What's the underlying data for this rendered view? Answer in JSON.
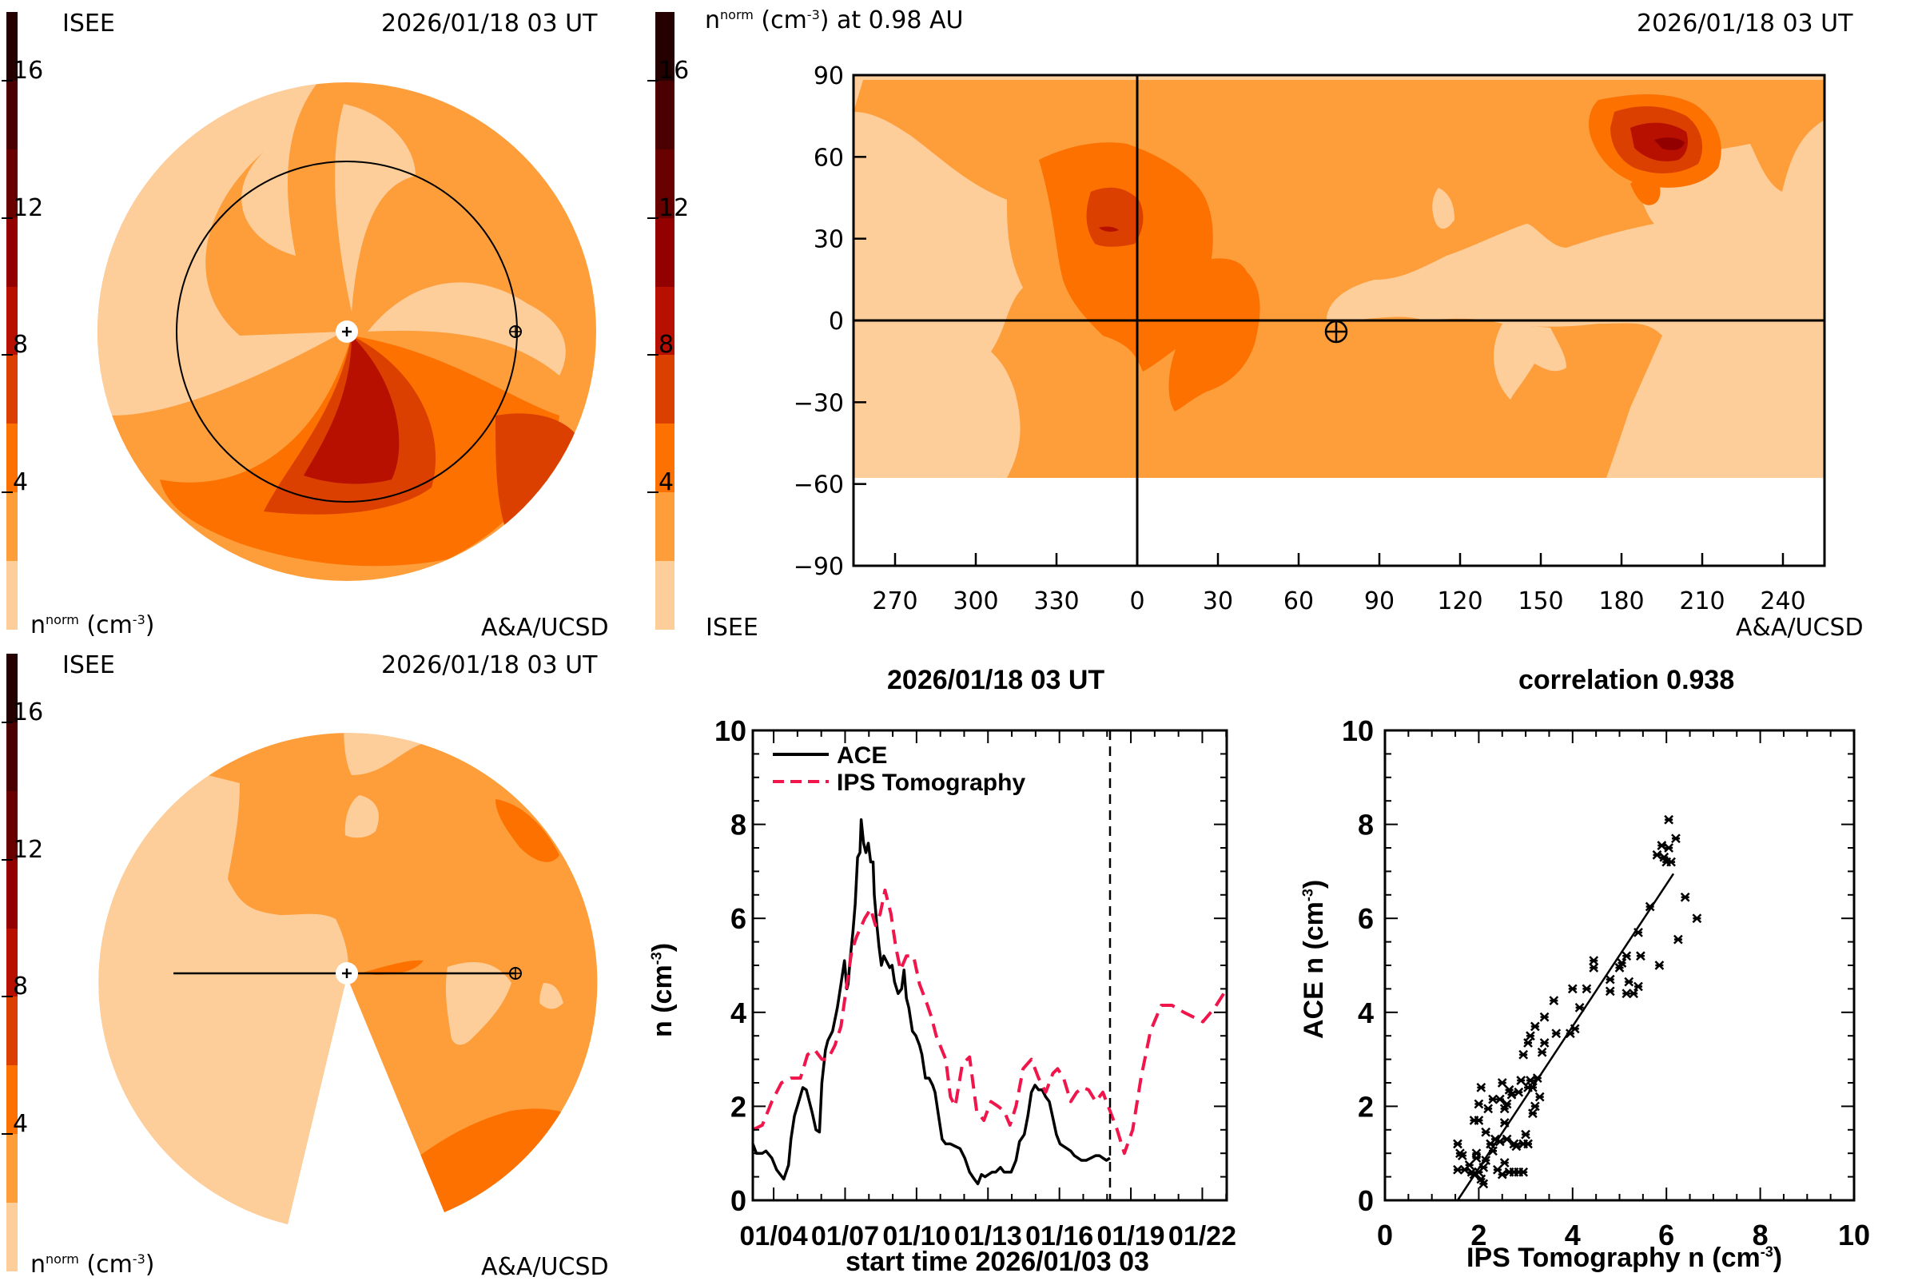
{
  "colormap": {
    "levels": [
      0,
      2,
      4,
      6,
      8,
      10,
      12,
      14,
      16,
      18
    ],
    "colors": [
      "#fdcd9a",
      "#fd9e3b",
      "#fd7100",
      "#dc4000",
      "#b70f00",
      "#920000",
      "#690000",
      "#4a0000",
      "#240000"
    ],
    "tick_labels": [
      "16",
      "12",
      "8",
      "4"
    ],
    "tick_values": [
      16,
      12,
      8,
      4
    ]
  },
  "panel_top_left": {
    "source": "ISEE",
    "timestamp": "2026/01/18 03 UT",
    "unit_label": "n",
    "unit_sup": "norm",
    "unit_rest": " (cm",
    "unit_exp": "-3",
    "unit_close": ")",
    "credit": "A&A/UCSD"
  },
  "panel_top_right": {
    "title_var": "n",
    "title_sup": "norm",
    "title_unit": " (cm",
    "title_exp": "-3",
    "title_rest": ") at 0.98 AU",
    "timestamp": "2026/01/18 03 UT",
    "source": "ISEE",
    "credit": "A&A/UCSD",
    "y_ticks": [
      "90",
      "60",
      "30",
      "0",
      "−30",
      "−60",
      "−90"
    ],
    "x_ticks": [
      "270",
      "300",
      "330",
      "0",
      "30",
      "60",
      "90",
      "120",
      "150",
      "180",
      "210",
      "240"
    ],
    "earth_marker": {
      "lon": 73,
      "lat": -5
    }
  },
  "panel_bottom_left": {
    "source": "ISEE",
    "timestamp": "2026/01/18 03 UT",
    "unit_label": "n",
    "unit_sup": "norm",
    "unit_rest": " (cm",
    "unit_exp": "-3",
    "unit_close": ")",
    "credit": "A&A/UCSD"
  },
  "chart_data": [
    {
      "type": "line",
      "title": "2026/01/18 03 UT",
      "xlabel": "start time 2026/01/03 03",
      "ylabel": "n (cm",
      "ylabel_exp": "-3",
      "ylim": [
        0,
        10
      ],
      "xlim_days": [
        0.0,
        19.9
      ],
      "y_ticks": [
        "0",
        "2",
        "4",
        "6",
        "8",
        "10"
      ],
      "x_tick_labels": [
        "01/04",
        "01/07",
        "01/10",
        "01/13",
        "01/16",
        "01/19",
        "01/22"
      ],
      "x_tick_days": [
        0.875,
        3.875,
        6.875,
        9.875,
        12.875,
        15.875,
        18.875
      ],
      "now_line_day": 15.0,
      "legend": [
        {
          "name": "ACE",
          "style": "solid",
          "color": "#000000"
        },
        {
          "name": "IPS Tomography",
          "style": "dashed",
          "color": "#f0154a"
        }
      ],
      "legend_position": "top-left",
      "series": [
        {
          "name": "ACE",
          "x": [
            0.0,
            0.15,
            0.4,
            0.55,
            0.8,
            1.0,
            1.15,
            1.3,
            1.4,
            1.5,
            1.6,
            1.75,
            1.9,
            2.1,
            2.25,
            2.35,
            2.5,
            2.65,
            2.8,
            2.9,
            3.05,
            3.15,
            3.35,
            3.55,
            3.7,
            3.85,
            3.95,
            4.0,
            4.1,
            4.2,
            4.3,
            4.4,
            4.5,
            4.55,
            4.65,
            4.75,
            4.85,
            4.95,
            5.05,
            5.1,
            5.2,
            5.3,
            5.4,
            5.5,
            5.6,
            5.75,
            5.85,
            5.95,
            6.1,
            6.25,
            6.35,
            6.45,
            6.55,
            6.7,
            6.85,
            7.0,
            7.1,
            7.25,
            7.4,
            7.55,
            7.65,
            7.8,
            7.95,
            8.1,
            8.3,
            8.5,
            8.7,
            8.9,
            9.1,
            9.3,
            9.45,
            9.6,
            9.75,
            9.9,
            10.05,
            10.2,
            10.4,
            10.55,
            10.7,
            10.85,
            11.05,
            11.2,
            11.4,
            11.55,
            11.7,
            11.85,
            12.0,
            12.15,
            12.3,
            12.45,
            12.6,
            12.75,
            12.9,
            13.05,
            13.2,
            13.35,
            13.5,
            13.65,
            13.8,
            14.0,
            14.2,
            14.4,
            14.55,
            14.7,
            14.85,
            15.0
          ],
          "y": [
            1.2,
            1.0,
            1.0,
            1.05,
            0.9,
            0.65,
            0.55,
            0.45,
            0.6,
            0.75,
            1.3,
            1.8,
            2.05,
            2.4,
            2.35,
            2.15,
            1.85,
            1.5,
            1.45,
            2.5,
            3.2,
            3.4,
            3.6,
            4.1,
            4.6,
            5.1,
            4.5,
            4.6,
            5.2,
            5.7,
            6.3,
            7.3,
            7.4,
            8.1,
            7.6,
            7.4,
            7.6,
            7.2,
            7.2,
            6.5,
            5.9,
            5.4,
            5.0,
            5.2,
            5.1,
            4.95,
            5.0,
            4.65,
            4.4,
            4.5,
            4.9,
            4.3,
            4.1,
            3.6,
            3.5,
            3.3,
            3.1,
            2.6,
            2.6,
            2.45,
            2.3,
            1.8,
            1.3,
            1.2,
            1.2,
            1.15,
            1.1,
            0.9,
            0.6,
            0.45,
            0.35,
            0.55,
            0.5,
            0.55,
            0.6,
            0.6,
            0.7,
            0.6,
            0.6,
            0.6,
            0.85,
            1.25,
            1.4,
            1.8,
            2.3,
            2.45,
            2.35,
            2.35,
            2.2,
            2.1,
            1.75,
            1.4,
            1.2,
            1.15,
            1.1,
            1.05,
            0.95,
            0.9,
            0.85,
            0.85,
            0.9,
            0.95,
            0.95,
            0.9,
            0.85,
            0.9
          ]
        },
        {
          "name": "IPS Tomography",
          "x": [
            0.0,
            0.4,
            0.8,
            1.2,
            1.6,
            2.0,
            2.3,
            2.6,
            2.9,
            3.15,
            3.45,
            3.7,
            3.95,
            4.15,
            4.35,
            4.7,
            4.95,
            5.15,
            5.35,
            5.55,
            5.8,
            6.0,
            6.2,
            6.45,
            6.75,
            7.0,
            7.3,
            7.5,
            7.7,
            8.1,
            8.3,
            8.5,
            8.8,
            9.1,
            9.4,
            9.7,
            10.0,
            10.3,
            10.55,
            10.8,
            11.05,
            11.35,
            11.7,
            12.0,
            12.3,
            12.6,
            12.8,
            13.05,
            13.35,
            13.6,
            13.85,
            14.1,
            14.4,
            14.7,
            15.0,
            15.3,
            15.6,
            15.95,
            16.3,
            16.7,
            17.15,
            17.6,
            18.1,
            18.5,
            18.9,
            19.4,
            19.9
          ],
          "y": [
            1.5,
            1.6,
            2.1,
            2.5,
            2.6,
            2.6,
            3.1,
            3.2,
            3.0,
            3.0,
            3.3,
            3.7,
            4.6,
            5.3,
            5.6,
            6.0,
            6.2,
            5.85,
            6.1,
            6.6,
            6.1,
            5.4,
            4.9,
            5.2,
            5.2,
            4.6,
            4.2,
            3.9,
            3.5,
            3.0,
            2.2,
            2.0,
            2.9,
            3.05,
            1.9,
            1.7,
            2.1,
            2.0,
            1.9,
            1.6,
            2.0,
            2.8,
            3.0,
            2.6,
            2.3,
            2.7,
            2.8,
            2.6,
            2.1,
            2.3,
            2.4,
            2.35,
            2.1,
            2.3,
            1.9,
            1.5,
            1.0,
            1.5,
            2.6,
            3.6,
            4.15,
            4.15,
            4.0,
            3.9,
            3.8,
            4.1,
            4.5
          ]
        }
      ]
    },
    {
      "type": "scatter",
      "title": "correlation 0.938",
      "xlabel": "IPS Tomography n (cm",
      "xlabel_exp": "-3",
      "ylabel": "ACE n (cm",
      "ylabel_exp": "-3",
      "xlim": [
        0,
        10
      ],
      "ylim": [
        0,
        10
      ],
      "x_ticks": [
        "0",
        "2",
        "4",
        "6",
        "8",
        "10"
      ],
      "y_ticks": [
        "0",
        "2",
        "4",
        "6",
        "8",
        "10"
      ],
      "marker": "x",
      "fit_line": {
        "x": [
          1.55,
          6.15
        ],
        "y": [
          0.0,
          6.95
        ]
      },
      "points": [
        [
          1.55,
          1.2
        ],
        [
          1.6,
          1.0
        ],
        [
          1.65,
          0.95
        ],
        [
          1.55,
          0.65
        ],
        [
          1.7,
          0.65
        ],
        [
          1.8,
          0.75
        ],
        [
          1.85,
          0.6
        ],
        [
          1.9,
          0.55
        ],
        [
          1.95,
          0.9
        ],
        [
          1.95,
          1.0
        ],
        [
          2.0,
          0.6
        ],
        [
          2.05,
          0.45
        ],
        [
          2.1,
          0.35
        ],
        [
          2.1,
          0.7
        ],
        [
          2.15,
          0.85
        ],
        [
          1.9,
          1.7
        ],
        [
          2.0,
          1.7
        ],
        [
          2.0,
          2.05
        ],
        [
          2.05,
          2.4
        ],
        [
          2.15,
          1.45
        ],
        [
          2.2,
          1.95
        ],
        [
          2.25,
          1.2
        ],
        [
          2.3,
          1.05
        ],
        [
          2.3,
          2.15
        ],
        [
          2.35,
          1.3
        ],
        [
          2.45,
          1.25
        ],
        [
          2.45,
          2.15
        ],
        [
          2.5,
          2.5
        ],
        [
          2.55,
          1.95
        ],
        [
          2.55,
          1.65
        ],
        [
          2.6,
          1.3
        ],
        [
          2.6,
          2.05
        ],
        [
          2.65,
          2.35
        ],
        [
          2.7,
          2.25
        ],
        [
          2.75,
          1.2
        ],
        [
          2.8,
          1.15
        ],
        [
          2.85,
          2.3
        ],
        [
          2.9,
          2.55
        ],
        [
          2.95,
          1.2
        ],
        [
          3.05,
          1.2
        ],
        [
          3.05,
          2.4
        ],
        [
          3.1,
          2.55
        ],
        [
          3.15,
          2.4
        ],
        [
          3.2,
          2.0
        ],
        [
          3.25,
          2.6
        ],
        [
          3.3,
          2.2
        ],
        [
          2.5,
          0.55
        ],
        [
          2.55,
          0.8
        ],
        [
          2.65,
          0.6
        ],
        [
          2.75,
          0.6
        ],
        [
          2.85,
          0.6
        ],
        [
          2.95,
          0.6
        ],
        [
          2.4,
          0.65
        ],
        [
          3.0,
          1.4
        ],
        [
          3.15,
          1.85
        ],
        [
          2.95,
          3.1
        ],
        [
          3.05,
          3.35
        ],
        [
          3.1,
          3.5
        ],
        [
          3.2,
          3.7
        ],
        [
          3.35,
          3.15
        ],
        [
          3.4,
          3.9
        ],
        [
          3.4,
          3.35
        ],
        [
          3.6,
          4.25
        ],
        [
          3.65,
          3.55
        ],
        [
          3.95,
          3.55
        ],
        [
          4.0,
          4.5
        ],
        [
          4.05,
          3.65
        ],
        [
          4.15,
          4.1
        ],
        [
          4.3,
          4.5
        ],
        [
          4.45,
          4.95
        ],
        [
          4.45,
          5.1
        ],
        [
          4.8,
          4.45
        ],
        [
          4.8,
          4.7
        ],
        [
          5.0,
          4.95
        ],
        [
          5.05,
          5.05
        ],
        [
          5.15,
          4.4
        ],
        [
          5.15,
          5.2
        ],
        [
          5.2,
          4.65
        ],
        [
          5.3,
          4.4
        ],
        [
          5.4,
          4.55
        ],
        [
          5.4,
          5.7
        ],
        [
          5.45,
          5.2
        ],
        [
          5.65,
          6.25
        ],
        [
          5.8,
          7.35
        ],
        [
          5.85,
          5.0
        ],
        [
          5.9,
          7.55
        ],
        [
          5.95,
          7.3
        ],
        [
          6.0,
          7.2
        ],
        [
          6.05,
          7.5
        ],
        [
          6.05,
          8.1
        ],
        [
          6.1,
          7.2
        ],
        [
          6.2,
          7.7
        ],
        [
          6.25,
          5.55
        ],
        [
          6.4,
          6.45
        ],
        [
          6.65,
          6.0
        ]
      ]
    }
  ]
}
